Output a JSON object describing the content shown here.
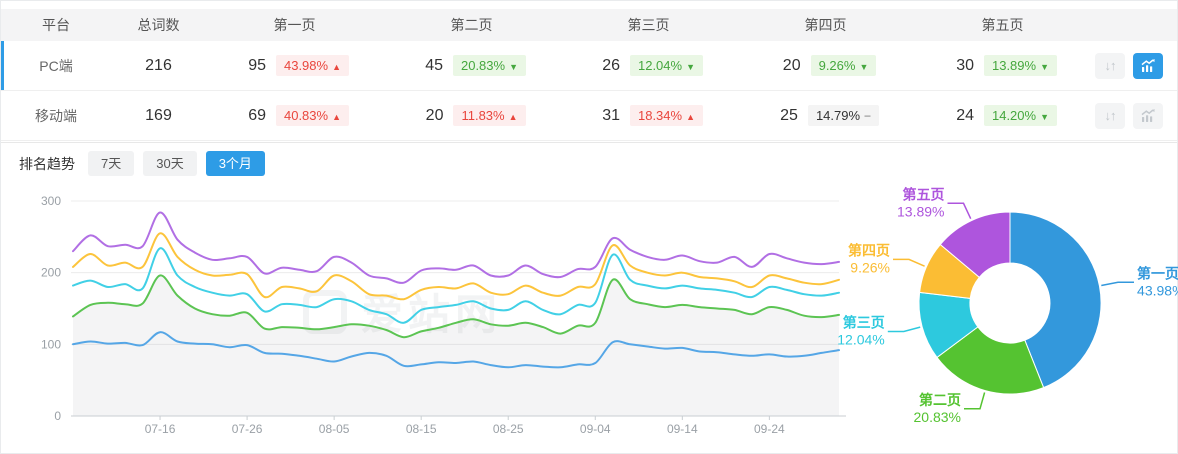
{
  "accent": "#2E9CE6",
  "table": {
    "headers": [
      "平台",
      "总词数",
      "第一页",
      "第二页",
      "第三页",
      "第四页",
      "第五页"
    ],
    "rows": [
      {
        "platform": "PC端",
        "total": "216",
        "selected": true,
        "chart_active": true,
        "pages": [
          {
            "count": "95",
            "pct": "43.98%",
            "dir": "up"
          },
          {
            "count": "45",
            "pct": "20.83%",
            "dir": "down"
          },
          {
            "count": "26",
            "pct": "12.04%",
            "dir": "down"
          },
          {
            "count": "20",
            "pct": "9.26%",
            "dir": "down"
          },
          {
            "count": "30",
            "pct": "13.89%",
            "dir": "down"
          }
        ]
      },
      {
        "platform": "移动端",
        "total": "169",
        "selected": false,
        "chart_active": false,
        "pages": [
          {
            "count": "69",
            "pct": "40.83%",
            "dir": "up"
          },
          {
            "count": "20",
            "pct": "11.83%",
            "dir": "up"
          },
          {
            "count": "31",
            "pct": "18.34%",
            "dir": "up"
          },
          {
            "count": "25",
            "pct": "14.79%",
            "dir": "flat"
          },
          {
            "count": "24",
            "pct": "14.20%",
            "dir": "down"
          }
        ]
      }
    ]
  },
  "trend": {
    "title": "排名趋势",
    "tabs": [
      {
        "label": "7天",
        "active": false
      },
      {
        "label": "30天",
        "active": false
      },
      {
        "label": "3个月",
        "active": true
      }
    ]
  },
  "watermark": {
    "text": "爱站网"
  },
  "chart_data": [
    {
      "type": "line",
      "title": "排名趋势 (3个月)",
      "ylim": [
        0,
        300
      ],
      "y_ticks": [
        0,
        100,
        200,
        300
      ],
      "x_tick_labels": [
        "07-16",
        "07-26",
        "08-05",
        "08-15",
        "08-25",
        "09-04",
        "09-14",
        "09-24"
      ],
      "x_tick_idx": [
        5,
        10,
        15,
        20,
        25,
        30,
        35,
        40
      ],
      "grid": true,
      "legend": false,
      "series": [
        {
          "name": "第一页",
          "color": "#55A6E6",
          "values": [
            100,
            104,
            101,
            102,
            99,
            117,
            104,
            101,
            100,
            96,
            99,
            88,
            87,
            84,
            80,
            76,
            83,
            88,
            84,
            70,
            72,
            75,
            74,
            76,
            71,
            68,
            71,
            69,
            68,
            72,
            74,
            103,
            100,
            97,
            94,
            95,
            90,
            89,
            86,
            84,
            86,
            83,
            84,
            88,
            92
          ]
        },
        {
          "name": "第二页",
          "color": "#5CC453",
          "area": true,
          "values": [
            139,
            155,
            158,
            156,
            157,
            196,
            168,
            150,
            142,
            140,
            144,
            122,
            124,
            123,
            121,
            124,
            128,
            126,
            120,
            110,
            118,
            123,
            130,
            135,
            128,
            126,
            130,
            124,
            115,
            126,
            130,
            190,
            163,
            156,
            152,
            155,
            152,
            150,
            148,
            142,
            152,
            148,
            140,
            138,
            141
          ]
        },
        {
          "name": "第三页",
          "color": "#41D0E6",
          "values": [
            182,
            189,
            180,
            184,
            178,
            234,
            196,
            180,
            172,
            168,
            170,
            146,
            156,
            155,
            152,
            163,
            160,
            148,
            142,
            130,
            148,
            152,
            155,
            160,
            150,
            148,
            160,
            148,
            142,
            155,
            158,
            225,
            190,
            182,
            178,
            182,
            178,
            176,
            172,
            166,
            180,
            176,
            170,
            168,
            172
          ]
        },
        {
          "name": "第四页",
          "color": "#FCC43C",
          "values": [
            208,
            226,
            210,
            214,
            208,
            255,
            222,
            204,
            196,
            197,
            198,
            166,
            180,
            178,
            174,
            196,
            188,
            170,
            168,
            163,
            176,
            180,
            178,
            185,
            172,
            170,
            182,
            172,
            168,
            180,
            184,
            238,
            210,
            200,
            196,
            200,
            194,
            192,
            188,
            180,
            196,
            192,
            186,
            184,
            190
          ]
        },
        {
          "name": "第五页",
          "color": "#B16FE4",
          "values": [
            230,
            252,
            237,
            239,
            237,
            284,
            246,
            228,
            218,
            220,
            222,
            199,
            207,
            204,
            202,
            222,
            214,
            196,
            192,
            186,
            203,
            206,
            204,
            210,
            196,
            196,
            210,
            198,
            194,
            205,
            208,
            248,
            232,
            222,
            218,
            224,
            216,
            214,
            222,
            208,
            226,
            220,
            214,
            212,
            215
          ]
        }
      ]
    },
    {
      "type": "pie",
      "donut": true,
      "inner_ratio": 0.44,
      "slices": [
        {
          "label": "第一页",
          "value": 43.98,
          "color": "#3398DC"
        },
        {
          "label": "第二页",
          "value": 20.83,
          "color": "#55C331"
        },
        {
          "label": "第三页",
          "value": 12.04,
          "color": "#2DC9DE"
        },
        {
          "label": "第四页",
          "value": 9.26,
          "color": "#FBBD34"
        },
        {
          "label": "第五页",
          "value": 13.89,
          "color": "#AE55DD"
        }
      ]
    }
  ]
}
